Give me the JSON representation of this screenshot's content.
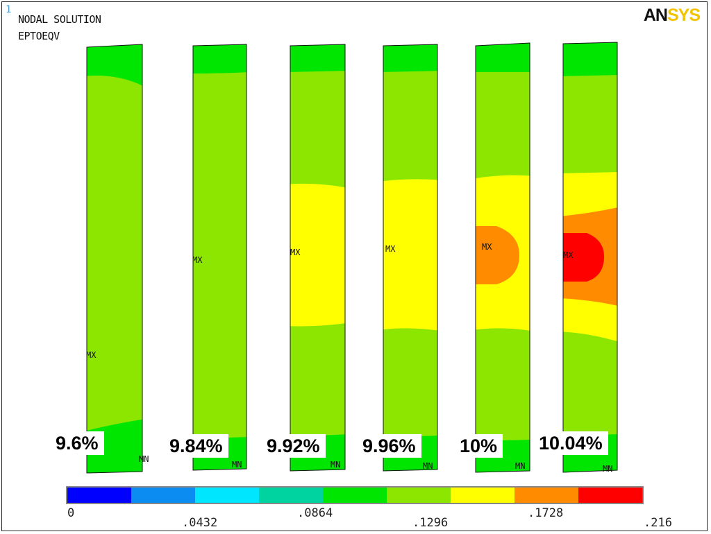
{
  "header": {
    "index": "1",
    "line1": "NODAL SOLUTION",
    "line2": "EPTOEQV"
  },
  "logo": {
    "dark": "AN",
    "light": "SYS"
  },
  "samples": [
    {
      "label": "9.6%",
      "mx": "MX",
      "mn": "MN"
    },
    {
      "label": "9.84%",
      "mx": "MX",
      "mn": "MN"
    },
    {
      "label": "9.92%",
      "mx": "MX",
      "mn": "MN"
    },
    {
      "label": "9.96%",
      "mx": "MX",
      "mn": "MN"
    },
    {
      "label": "10%",
      "mx": "MX",
      "mn": "MN"
    },
    {
      "label": "10.04%",
      "mx": "MX",
      "mn": "MN"
    }
  ],
  "legend": {
    "ticks": [
      "0",
      ".0432",
      ".0864",
      ".1296",
      ".1728",
      ".216"
    ],
    "colors": [
      "#0000ff",
      "#0a8cf0",
      "#00e6ff",
      "#00d2a0",
      "#00e600",
      "#8ce600",
      "#ffff00",
      "#ff8c00",
      "#ff0000"
    ]
  },
  "palette": {
    "green": "#00e600",
    "lime": "#8ce600",
    "yellow": "#ffff00",
    "orange": "#ff8c00",
    "red": "#ff0000"
  }
}
